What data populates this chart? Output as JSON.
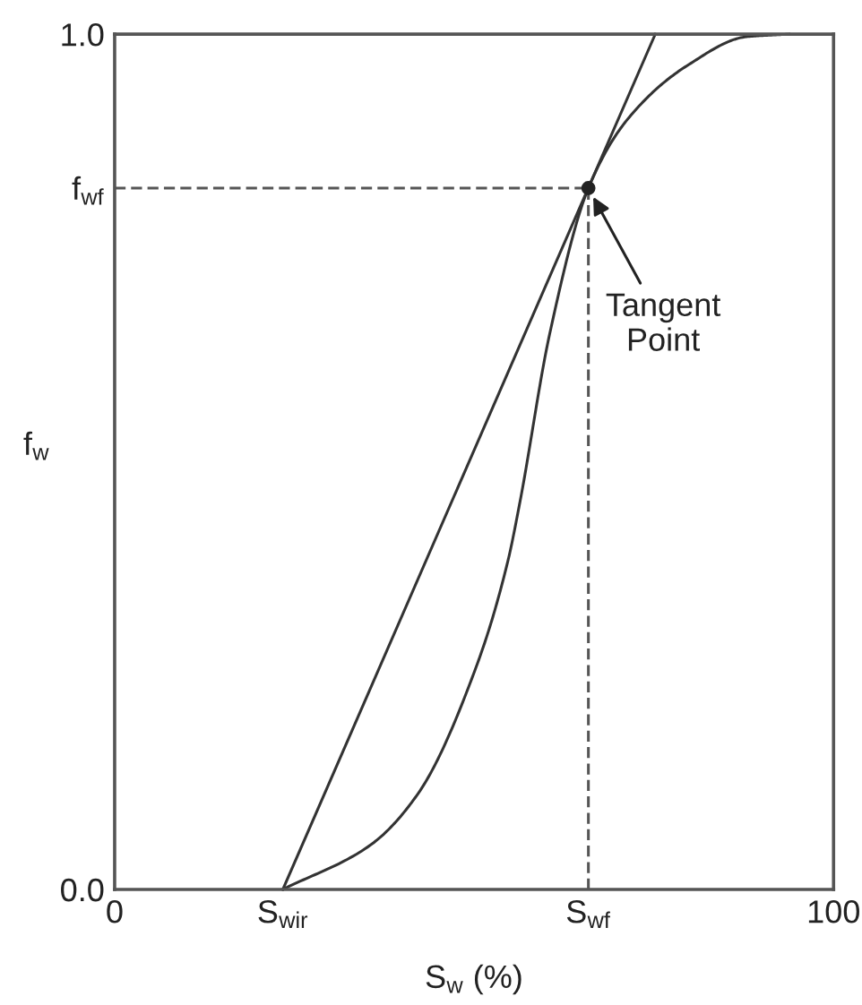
{
  "chart_data": {
    "type": "line",
    "xlabel": "S$_{w}$ (%)",
    "ylabel": "f$_{w}$",
    "xlim": [
      0,
      100
    ],
    "ylim": [
      0,
      1
    ],
    "xticks": [
      0,
      {
        "value": 23.4,
        "label": "S$_{wir}$"
      },
      {
        "value": 65.9,
        "label": "S$_{wf}$"
      },
      100
    ],
    "yticks": [
      {
        "value": 0,
        "label": "0.0"
      },
      {
        "value": 0.82,
        "label": "f$_{wf}$"
      },
      {
        "value": 1,
        "label": "1.0"
      }
    ],
    "grid": false,
    "marker": "none",
    "line_style": "solid",
    "series": [
      {
        "color": "#333333",
        "x": [
          23.4,
          35.6,
          42.2,
          50.5,
          54.7,
          56.4,
          60.5,
          65.9,
          71.3,
          79.6,
          87.9,
          93.8
        ],
        "values": [
          0,
          0.052,
          0.112,
          0.265,
          0.384,
          0.454,
          0.649,
          0.82,
          0.9,
          0.963,
          0.997,
          1.0
        ]
      },
      {
        "color": "#333333",
        "x": [
          23.4,
          75.2
        ],
        "values": [
          0,
          1.0
        ]
      },
      {
        "color": "#555555",
        "line_style": "dashed",
        "x": [
          0,
          65.9
        ],
        "values": [
          0.82,
          0.82
        ]
      },
      {
        "color": "#555555",
        "line_style": "dashed",
        "x": [
          65.9,
          65.9
        ],
        "values": [
          0,
          0.82
        ]
      },
      {
        "type": "scatter",
        "color": "#222222",
        "marker": "circle",
        "x": [
          65.9
        ],
        "values": [
          0.82
        ]
      }
    ],
    "annotations": [
      {
        "text": "Tangent\nPoint",
        "x": 65.9,
        "y": 0.82
      }
    ]
  }
}
